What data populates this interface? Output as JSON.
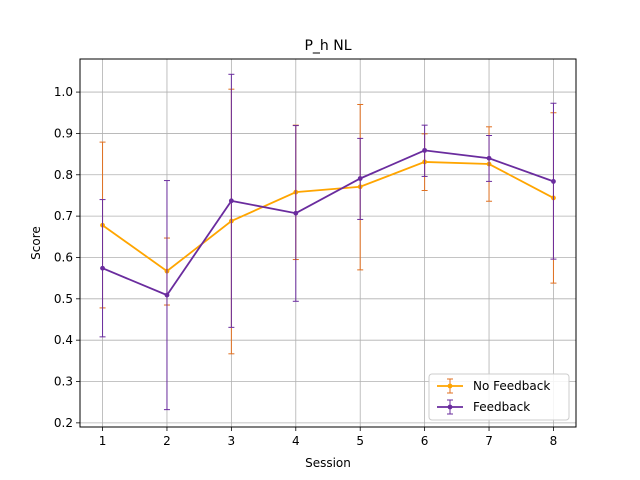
{
  "chart_data": {
    "type": "line",
    "title": "P_h NL",
    "xlabel": "Session",
    "ylabel": "Score",
    "x": [
      1,
      2,
      3,
      4,
      5,
      6,
      7,
      8
    ],
    "xlim": [
      0.65,
      8.35
    ],
    "ylim": [
      0.19,
      1.08
    ],
    "xticks": [
      1,
      2,
      3,
      4,
      5,
      6,
      7,
      8
    ],
    "yticks": [
      0.2,
      0.3,
      0.4,
      0.5,
      0.6,
      0.7,
      0.8,
      0.9,
      1.0
    ],
    "ytick_labels": [
      "0.2",
      "0.3",
      "0.4",
      "0.5",
      "0.6",
      "0.7",
      "0.8",
      "0.9",
      "1.0"
    ],
    "grid": true,
    "legend_position": "lower-right",
    "series": [
      {
        "name": "No Feedback",
        "color": "#FFA500",
        "error_color": "#E07020",
        "values": [
          0.678,
          0.567,
          0.688,
          0.758,
          0.771,
          0.831,
          0.826,
          0.744
        ],
        "err_low": [
          0.478,
          0.485,
          0.367,
          0.595,
          0.57,
          0.762,
          0.736,
          0.538
        ],
        "err_high": [
          0.879,
          0.647,
          1.007,
          0.92,
          0.97,
          0.899,
          0.916,
          0.95
        ]
      },
      {
        "name": "Feedback",
        "color": "#6A2C9E",
        "error_color": "#6A2C9E",
        "values": [
          0.574,
          0.509,
          0.737,
          0.707,
          0.791,
          0.859,
          0.84,
          0.784
        ],
        "err_low": [
          0.408,
          0.232,
          0.431,
          0.494,
          0.692,
          0.796,
          0.784,
          0.596
        ],
        "err_high": [
          0.74,
          0.786,
          1.043,
          0.919,
          0.888,
          0.92,
          0.895,
          0.973
        ]
      }
    ]
  }
}
